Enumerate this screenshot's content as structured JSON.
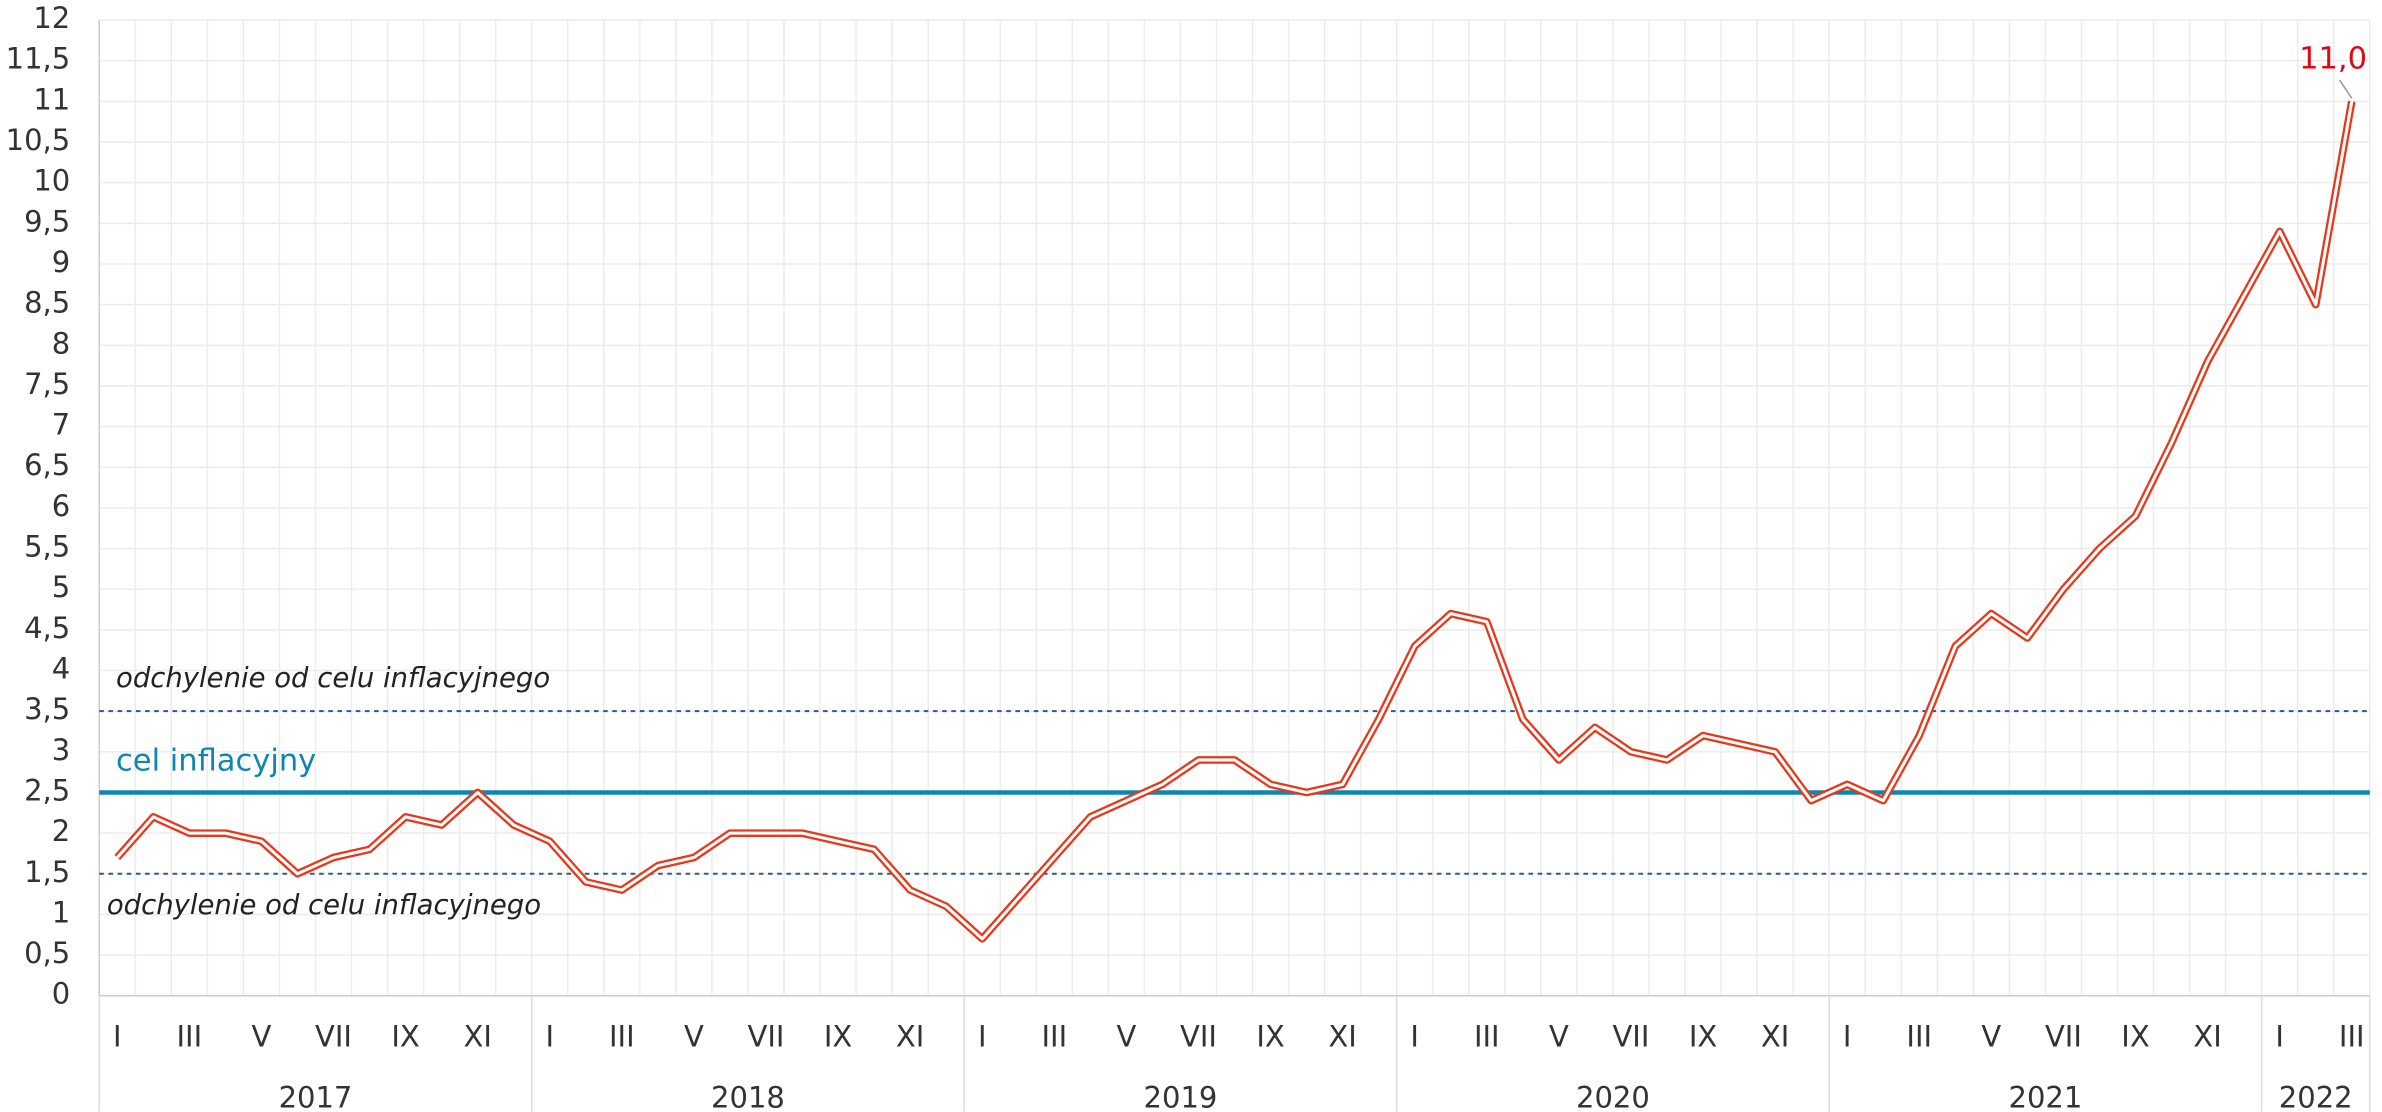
{
  "chart_data": {
    "type": "line",
    "categories": [
      "I",
      null,
      "III",
      null,
      "V",
      null,
      "VII",
      null,
      "IX",
      null,
      "XI",
      null,
      "I",
      null,
      "III",
      null,
      "V",
      null,
      "VII",
      null,
      "IX",
      null,
      "XI",
      null,
      "I",
      null,
      "III",
      null,
      "V",
      null,
      "VII",
      null,
      "IX",
      null,
      "XI",
      null,
      "I",
      null,
      "III",
      null,
      "V",
      null,
      "VII",
      null,
      "IX",
      null,
      "XI",
      null,
      "I",
      null,
      "III",
      null,
      "V",
      null,
      "VII",
      null,
      "IX",
      null,
      "XI",
      null,
      "I",
      null,
      "III"
    ],
    "years": [
      "2017",
      "2018",
      "2019",
      "2020",
      "2021",
      "2022"
    ],
    "series": [
      {
        "color": "#e8381b",
        "values": [
          1.7,
          2.2,
          2.0,
          2.0,
          1.9,
          1.5,
          1.7,
          1.8,
          2.2,
          2.1,
          2.5,
          2.1,
          1.9,
          1.4,
          1.3,
          1.6,
          1.7,
          2.0,
          2.0,
          2.0,
          1.9,
          1.8,
          1.3,
          1.1,
          0.7,
          1.2,
          1.7,
          2.2,
          2.4,
          2.6,
          2.9,
          2.9,
          2.6,
          2.5,
          2.6,
          3.4,
          4.3,
          4.7,
          4.6,
          3.4,
          2.9,
          3.3,
          3.0,
          2.9,
          3.2,
          3.1,
          3.0,
          2.4,
          2.6,
          2.4,
          3.2,
          4.3,
          4.7,
          4.4,
          5.0,
          5.5,
          5.9,
          6.8,
          7.8,
          8.6,
          9.4,
          8.5,
          11.0
        ]
      }
    ],
    "last_label": {
      "index": 62,
      "label": "11,0",
      "color": "#e30613"
    },
    "target": {
      "value": 2.5,
      "label": "cel inflacyjny",
      "color": "#0e86b0"
    },
    "bands": [
      {
        "value": 1.5,
        "label": "odchylenie od celu inflacyjnego"
      },
      {
        "value": 3.5,
        "label": "odchylenie od celu inflacyjnego"
      }
    ],
    "band_color": "#2d5a8c",
    "ylim": [
      0,
      12
    ],
    "yticks": [
      0,
      {
        "value": 0.5,
        "label": "0,5"
      },
      1,
      {
        "value": 1.5,
        "label": "1,5"
      },
      2,
      {
        "value": 2.5,
        "label": "2,5"
      },
      3,
      {
        "value": 3.5,
        "label": "3,5"
      },
      4,
      {
        "value": 4.5,
        "label": "4,5"
      },
      5,
      {
        "value": 5.5,
        "label": "5,5"
      },
      6,
      {
        "value": 6.5,
        "label": "6,5"
      },
      7,
      {
        "value": 7.5,
        "label": "7,5"
      },
      8,
      {
        "value": 8.5,
        "label": "8,5"
      },
      9,
      {
        "value": 9.5,
        "label": "9,5"
      },
      10,
      {
        "value": 10.5,
        "label": "10,5"
      },
      11,
      {
        "value": 11.5,
        "label": "11,5"
      },
      12
    ],
    "grid": true
  }
}
